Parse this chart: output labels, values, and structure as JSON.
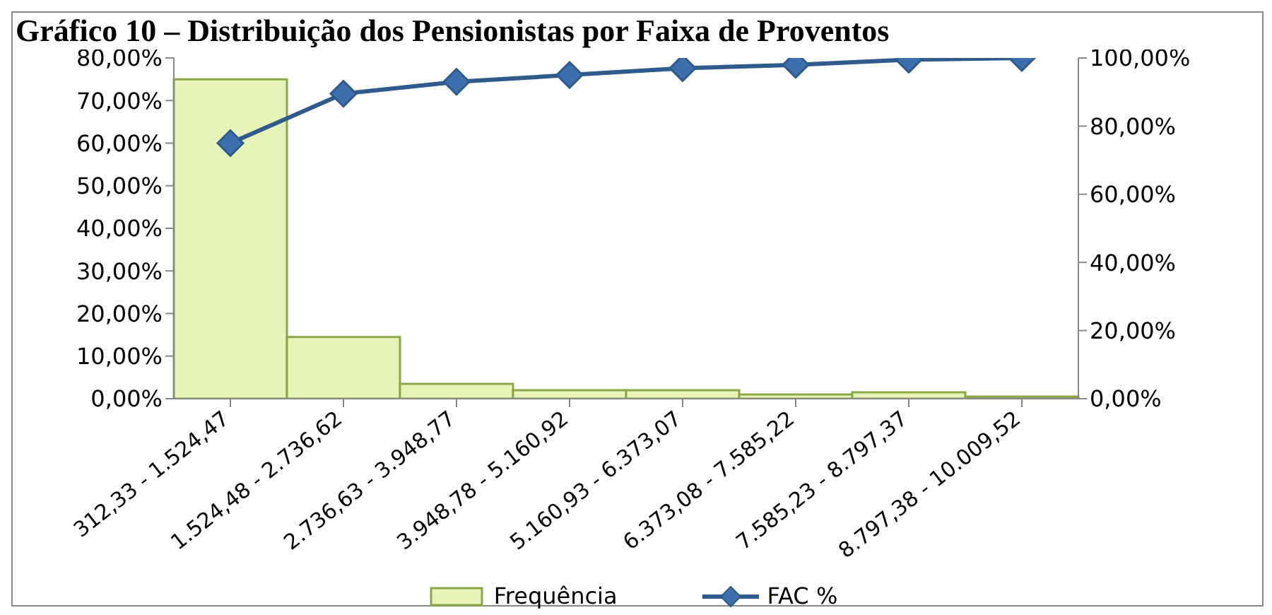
{
  "chart_data": {
    "type": "bar",
    "title": "Gráfico 10 – Distribuição dos Pensionistas por Faixa de Proventos",
    "categories": [
      "312,33 - 1.524,47",
      "1.524,48 - 2.736,62",
      "2.736,63 - 3.948,77",
      "3.948,78 - 5.160,92",
      "5.160,93 - 6.373,07",
      "6.373,08 - 7.585,22",
      "7.585,23 - 8.797,37",
      "8.797,38 - 10.009,52"
    ],
    "series": [
      {
        "name": "Frequência",
        "color": "#e6f4b8",
        "values": [
          75,
          14.5,
          3.5,
          2,
          2,
          1,
          1.5,
          0.5
        ]
      },
      {
        "name": "FAC %",
        "type": "line",
        "axis": "y2",
        "color": "#2e5a8c",
        "values": [
          75,
          89.5,
          93,
          95,
          97,
          98,
          99.5,
          100
        ]
      }
    ],
    "ylim": [
      0,
      80
    ],
    "yticks": [
      {
        "value": 0,
        "label": "0,00%"
      },
      {
        "value": 10,
        "label": "10,00%"
      },
      {
        "value": 20,
        "label": "20,00%"
      },
      {
        "value": 30,
        "label": "30,00%"
      },
      {
        "value": 40,
        "label": "40,00%"
      },
      {
        "value": 50,
        "label": "50,00%"
      },
      {
        "value": 60,
        "label": "60,00%"
      },
      {
        "value": 70,
        "label": "70,00%"
      },
      {
        "value": 80,
        "label": "80,00%"
      }
    ],
    "y2lim": [
      0,
      100
    ],
    "y2ticks": [
      {
        "value": 0,
        "label": "0,00%"
      },
      {
        "value": 20,
        "label": "20,00%"
      },
      {
        "value": 40,
        "label": "40,00%"
      },
      {
        "value": 60,
        "label": "60,00%"
      },
      {
        "value": 80,
        "label": "80,00%"
      },
      {
        "value": 100,
        "label": "100,00%"
      }
    ],
    "grid": false,
    "legend": "bottom",
    "marker": "diamond",
    "line_style": "solid"
  }
}
